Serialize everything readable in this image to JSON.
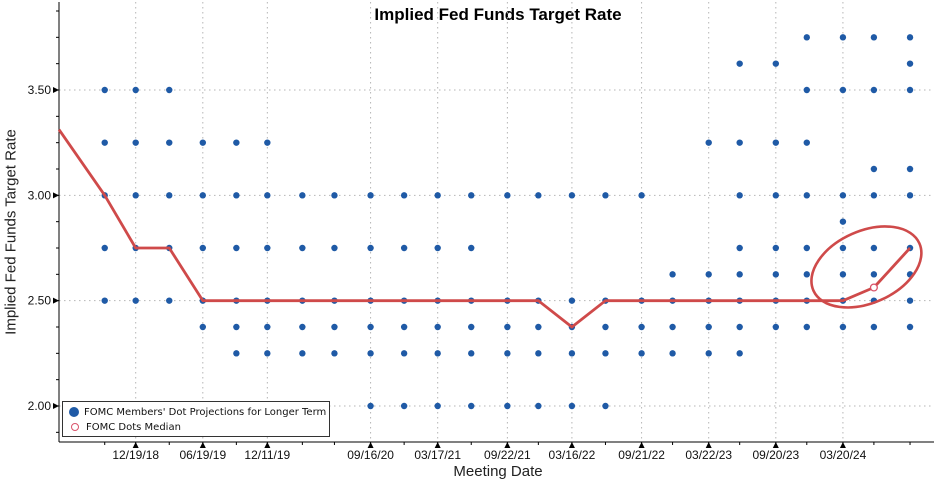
{
  "chart_data": {
    "type": "scatter",
    "title": "Implied Fed Funds Target Rate",
    "xlabel": "Meeting Date",
    "ylabel": "Implied Fed Funds Target Rate",
    "ylim": [
      1.88,
      3.88
    ],
    "yticks": [
      2.0,
      2.5,
      3.0,
      3.5
    ],
    "ytick_labels": [
      "2.00",
      "2.50",
      "3.00",
      "3.50"
    ],
    "xticks": [
      "12/19/18",
      "06/19/19",
      "12/11/19",
      "09/16/20",
      "03/17/21",
      "09/22/21",
      "03/16/22",
      "09/21/22",
      "03/22/23",
      "09/20/23",
      "03/20/24"
    ],
    "legend": {
      "placement": "bottom-left",
      "dots_label": "FOMC Members' Dot Projections for Longer Term",
      "median_label": "FOMC Dots Median"
    },
    "colors": {
      "dots": "#1f5aa6",
      "median_line": "#cf4a4a",
      "annotation": "#cf4a4a",
      "median_point": "#d9536a"
    },
    "grid": true,
    "dot_columns": [
      {
        "x": "2018-09-26",
        "levels": [
          3.5,
          3.25,
          3.0,
          2.75,
          2.5
        ]
      },
      {
        "x": "2018-12-19",
        "levels": [
          3.5,
          3.25,
          3.0,
          2.75,
          2.5
        ]
      },
      {
        "x": "2019-03-20",
        "levels": [
          3.5,
          3.25,
          3.0,
          2.75,
          2.5
        ]
      },
      {
        "x": "2019-06-19",
        "levels": [
          3.25,
          3.0,
          2.75,
          2.5,
          2.375
        ]
      },
      {
        "x": "2019-09-18",
        "levels": [
          3.25,
          3.0,
          2.75,
          2.5,
          2.375,
          2.25
        ]
      },
      {
        "x": "2019-12-11",
        "levels": [
          3.25,
          3.0,
          2.75,
          2.5,
          2.375,
          2.25
        ]
      },
      {
        "x": "2020-03-15",
        "levels": [
          3.0,
          2.75,
          2.5,
          2.375,
          2.25
        ]
      },
      {
        "x": "2020-06-10",
        "levels": [
          3.0,
          2.75,
          2.5,
          2.375,
          2.25
        ]
      },
      {
        "x": "2020-09-16",
        "levels": [
          3.0,
          2.75,
          2.5,
          2.375,
          2.25,
          2.0
        ]
      },
      {
        "x": "2020-12-16",
        "levels": [
          3.0,
          2.75,
          2.5,
          2.375,
          2.25,
          2.0
        ]
      },
      {
        "x": "2021-03-17",
        "levels": [
          3.0,
          2.75,
          2.5,
          2.375,
          2.25,
          2.0
        ]
      },
      {
        "x": "2021-06-16",
        "levels": [
          3.0,
          2.75,
          2.5,
          2.375,
          2.25,
          2.0
        ]
      },
      {
        "x": "2021-09-22",
        "levels": [
          3.0,
          2.5,
          2.375,
          2.25,
          2.0
        ]
      },
      {
        "x": "2021-12-15",
        "levels": [
          3.0,
          2.5,
          2.375,
          2.25,
          2.0
        ]
      },
      {
        "x": "2022-03-16",
        "levels": [
          3.0,
          2.5,
          2.375,
          2.25,
          2.0
        ]
      },
      {
        "x": "2022-06-15",
        "levels": [
          3.0,
          2.5,
          2.375,
          2.25,
          2.0
        ]
      },
      {
        "x": "2022-09-21",
        "levels": [
          3.0,
          2.5,
          2.375,
          2.25
        ]
      },
      {
        "x": "2022-12-14",
        "levels": [
          2.625,
          2.5,
          2.375,
          2.25
        ]
      },
      {
        "x": "2023-03-22",
        "levels": [
          3.25,
          2.625,
          2.5,
          2.375,
          2.25
        ]
      },
      {
        "x": "2023-06-14",
        "levels": [
          3.625,
          3.25,
          3.0,
          2.75,
          2.625,
          2.5,
          2.375,
          2.25
        ]
      },
      {
        "x": "2023-09-20",
        "levels": [
          3.625,
          3.25,
          3.0,
          2.75,
          2.625,
          2.5,
          2.375
        ]
      },
      {
        "x": "2023-12-13",
        "levels": [
          3.75,
          3.5,
          3.25,
          3.0,
          2.75,
          2.625,
          2.5,
          2.375
        ]
      },
      {
        "x": "2024-03-20",
        "levels": [
          3.75,
          3.5,
          3.0,
          2.875,
          2.75,
          2.625,
          2.5,
          2.375
        ]
      },
      {
        "x": "2024-06-12",
        "levels": [
          3.75,
          3.5,
          3.125,
          3.0,
          2.75,
          2.625,
          2.5,
          2.375
        ]
      },
      {
        "x": "2024-09-18",
        "levels": [
          3.75,
          3.625,
          3.5,
          3.125,
          3.0,
          2.75,
          2.625,
          2.5,
          2.375
        ]
      }
    ],
    "median_series": {
      "name": "FOMC Dots Median",
      "x": [
        "2018-09-26",
        "2018-12-19",
        "2019-03-20",
        "2019-06-19",
        "2019-09-18",
        "2019-12-11",
        "2020-03-15",
        "2020-06-10",
        "2020-09-16",
        "2020-12-16",
        "2021-03-17",
        "2021-06-16",
        "2021-09-22",
        "2021-12-15",
        "2022-03-16",
        "2022-06-15",
        "2022-09-21",
        "2022-12-14",
        "2023-03-22",
        "2023-06-14",
        "2023-09-20",
        "2023-12-13",
        "2024-03-20",
        "2024-06-12",
        "2024-09-18"
      ],
      "values": [
        3.0,
        2.75,
        2.75,
        2.5,
        2.5,
        2.5,
        2.5,
        2.5,
        2.5,
        2.5,
        2.5,
        2.5,
        2.5,
        2.5,
        2.375,
        2.5,
        2.5,
        2.5,
        2.5,
        2.5,
        2.5,
        2.5,
        2.5,
        2.5625,
        2.75
      ]
    },
    "highlighted_points": [
      {
        "x": "2024-06-12",
        "y": 2.5625
      }
    ]
  }
}
